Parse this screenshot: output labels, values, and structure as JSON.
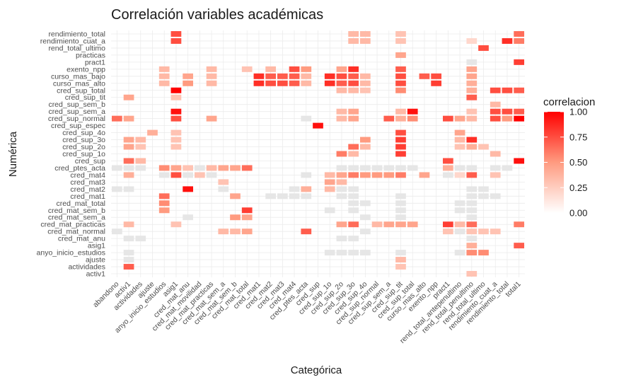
{
  "chart_data": {
    "type": "heatmap",
    "title": "Correlación variables académicas",
    "xlabel": "Categórica",
    "ylabel": "Numérica",
    "x_categories": [
      "abandono",
      "activ1",
      "actividades",
      "ajuste",
      "anyo_inicio_estudios",
      "asig1",
      "cred_mat_anu",
      "cred_mat_movilidad",
      "cred_mat_practicas",
      "cred_mat_sem_a",
      "cred_mat_sem_b",
      "cred_mat_total",
      "cred_mat1",
      "cred_mat2",
      "cred_mat3",
      "cred_mat4",
      "cred_ptes_acta",
      "cred_sup",
      "cred_sup_1o",
      "cred_sup_2o",
      "cred_sup_3o",
      "cred_sup_4o",
      "cred_sup_normal",
      "cred_sup_sem_a",
      "cred_sup_tit",
      "cred_sup_total",
      "curso_mas_alto",
      "exento_npp",
      "pract1",
      "rend_total_antepenultimo",
      "rend_total_penultimo",
      "rend_total_ultimo",
      "rendimiento_cuat_a",
      "rendimiento_total",
      "total1"
    ],
    "y_categories": [
      "rendimiento_total",
      "rendimiento_cuat_a",
      "rend_total_ultimo",
      "practicas",
      "pract1",
      "exento_npp",
      "curso_mas_bajo",
      "curso_mas_alto",
      "cred_sup_total",
      "cred_sup_tit",
      "cred_sup_sem_b",
      "cred_sup_sem_a",
      "cred_sup_normal",
      "cred_sup_espec",
      "cred_sup_4o",
      "cred_sup_3o",
      "cred_sup_2o",
      "cred_sup_1o",
      "cred_sup",
      "cred_ptes_acta",
      "cred_mat4",
      "cred_mat3",
      "cred_mat2",
      "cred_mat1",
      "cred_mat_total",
      "cred_mat_sem_b",
      "cred_mat_sem_a",
      "cred_mat_practicas",
      "cred_mat_normal",
      "cred_mat_anu",
      "asig1",
      "anyo_inicio_estudios",
      "ajuste",
      "actividades",
      "activ1"
    ],
    "cells": [
      [
        5,
        0,
        0.75
      ],
      [
        20,
        0,
        0.35
      ],
      [
        21,
        0,
        0.35
      ],
      [
        24,
        0,
        0.3
      ],
      [
        34,
        0,
        0.65
      ],
      [
        5,
        1,
        0.75
      ],
      [
        20,
        1,
        0.35
      ],
      [
        21,
        1,
        0.35
      ],
      [
        24,
        1,
        0.3
      ],
      [
        30,
        1,
        0.2
      ],
      [
        33,
        1,
        0.85
      ],
      [
        34,
        1,
        0.6
      ],
      [
        31,
        2,
        0.75
      ],
      [
        24,
        3,
        0.45
      ],
      [
        30,
        4,
        0.1
      ],
      [
        34,
        4,
        0.8
      ],
      [
        4,
        5,
        0.35
      ],
      [
        8,
        5,
        0.35
      ],
      [
        11,
        5,
        0.3
      ],
      [
        13,
        5,
        0.35
      ],
      [
        15,
        5,
        0.75
      ],
      [
        16,
        5,
        0.5
      ],
      [
        19,
        5,
        0.45
      ],
      [
        20,
        5,
        0.85
      ],
      [
        24,
        5,
        0.7
      ],
      [
        30,
        5,
        0.45
      ],
      [
        4,
        6,
        0.35
      ],
      [
        6,
        6,
        0.45
      ],
      [
        8,
        6,
        0.35
      ],
      [
        12,
        6,
        0.85
      ],
      [
        13,
        6,
        0.7
      ],
      [
        14,
        6,
        0.7
      ],
      [
        15,
        6,
        0.7
      ],
      [
        16,
        6,
        0.35
      ],
      [
        18,
        6,
        0.85
      ],
      [
        19,
        6,
        0.75
      ],
      [
        20,
        6,
        0.7
      ],
      [
        21,
        6,
        0.35
      ],
      [
        24,
        6,
        0.75
      ],
      [
        26,
        6,
        0.7
      ],
      [
        27,
        6,
        0.75
      ],
      [
        30,
        6,
        0.45
      ],
      [
        4,
        7,
        0.35
      ],
      [
        6,
        7,
        0.5
      ],
      [
        8,
        7,
        0.35
      ],
      [
        12,
        7,
        0.85
      ],
      [
        13,
        7,
        0.75
      ],
      [
        14,
        7,
        0.75
      ],
      [
        15,
        7,
        0.7
      ],
      [
        16,
        7,
        0.35
      ],
      [
        18,
        7,
        0.85
      ],
      [
        19,
        7,
        0.7
      ],
      [
        20,
        7,
        0.75
      ],
      [
        21,
        7,
        0.35
      ],
      [
        24,
        7,
        0.75
      ],
      [
        27,
        7,
        0.8
      ],
      [
        30,
        7,
        0.4
      ],
      [
        5,
        8,
        1.0
      ],
      [
        19,
        8,
        0.35
      ],
      [
        20,
        8,
        0.35
      ],
      [
        21,
        8,
        0.3
      ],
      [
        24,
        8,
        0.55
      ],
      [
        30,
        8,
        0.4
      ],
      [
        32,
        8,
        0.75
      ],
      [
        33,
        8,
        0.75
      ],
      [
        34,
        8,
        0.7
      ],
      [
        1,
        9,
        0.45
      ],
      [
        5,
        9,
        0.3
      ],
      [
        30,
        9,
        0.7
      ],
      [
        32,
        10,
        0.35
      ],
      [
        5,
        11,
        0.95
      ],
      [
        19,
        11,
        0.35
      ],
      [
        20,
        11,
        0.45
      ],
      [
        24,
        11,
        0.35
      ],
      [
        25,
        11,
        0.95
      ],
      [
        30,
        11,
        0.3
      ],
      [
        32,
        11,
        0.75
      ],
      [
        33,
        11,
        0.75
      ],
      [
        34,
        11,
        0.7
      ],
      [
        0,
        12,
        0.65
      ],
      [
        1,
        12,
        0.45
      ],
      [
        5,
        12,
        0.75
      ],
      [
        8,
        12,
        0.45
      ],
      [
        16,
        12,
        0.1
      ],
      [
        19,
        12,
        0.35
      ],
      [
        20,
        12,
        0.45
      ],
      [
        23,
        12,
        0.7
      ],
      [
        24,
        12,
        0.4
      ],
      [
        25,
        12,
        0.55
      ],
      [
        28,
        12,
        0.75
      ],
      [
        29,
        12,
        0.45
      ],
      [
        30,
        12,
        0.35
      ],
      [
        32,
        12,
        0.75
      ],
      [
        33,
        12,
        0.5
      ],
      [
        34,
        12,
        1.0
      ],
      [
        17,
        13,
        0.95
      ],
      [
        3,
        14,
        0.4
      ],
      [
        5,
        14,
        0.3
      ],
      [
        24,
        14,
        0.75
      ],
      [
        29,
        14,
        0.45
      ],
      [
        1,
        15,
        0.45
      ],
      [
        2,
        15,
        0.35
      ],
      [
        5,
        15,
        0.3
      ],
      [
        21,
        15,
        0.5
      ],
      [
        24,
        15,
        0.8
      ],
      [
        29,
        15,
        0.35
      ],
      [
        30,
        15,
        0.85
      ],
      [
        1,
        16,
        0.45
      ],
      [
        2,
        16,
        0.3
      ],
      [
        5,
        16,
        0.3
      ],
      [
        20,
        16,
        0.65
      ],
      [
        21,
        16,
        0.35
      ],
      [
        24,
        16,
        0.8
      ],
      [
        29,
        16,
        0.3
      ],
      [
        30,
        16,
        0.4
      ],
      [
        31,
        16,
        0.3
      ],
      [
        19,
        17,
        0.6
      ],
      [
        20,
        17,
        0.35
      ],
      [
        24,
        17,
        0.8
      ],
      [
        32,
        17,
        0.35
      ],
      [
        1,
        18,
        0.65
      ],
      [
        2,
        18,
        0.35
      ],
      [
        28,
        18,
        0.75
      ],
      [
        34,
        18,
        0.95
      ],
      [
        0,
        19,
        0.1
      ],
      [
        1,
        19,
        0.1
      ],
      [
        2,
        19,
        0.1
      ],
      [
        4,
        19,
        0.55
      ],
      [
        5,
        19,
        0.45
      ],
      [
        6,
        19,
        0.3
      ],
      [
        7,
        19,
        0.1
      ],
      [
        8,
        19,
        0.35
      ],
      [
        9,
        19,
        0.45
      ],
      [
        10,
        19,
        0.45
      ],
      [
        11,
        19,
        0.65
      ],
      [
        19,
        19,
        0.1
      ],
      [
        20,
        19,
        0.1
      ],
      [
        21,
        19,
        0.1
      ],
      [
        22,
        19,
        0.1
      ],
      [
        23,
        19,
        0.1
      ],
      [
        24,
        19,
        0.1
      ],
      [
        25,
        19,
        0.1
      ],
      [
        28,
        19,
        0.4
      ],
      [
        29,
        19,
        0.1
      ],
      [
        30,
        19,
        0.1
      ],
      [
        32,
        19,
        0.1
      ],
      [
        33,
        19,
        0.1
      ],
      [
        1,
        20,
        0.4
      ],
      [
        4,
        20,
        0.1
      ],
      [
        5,
        20,
        0.75
      ],
      [
        6,
        20,
        0.1
      ],
      [
        7,
        20,
        0.3
      ],
      [
        8,
        20,
        0.1
      ],
      [
        16,
        20,
        0.1
      ],
      [
        18,
        20,
        0.35
      ],
      [
        19,
        20,
        0.45
      ],
      [
        20,
        20,
        0.6
      ],
      [
        21,
        20,
        0.5
      ],
      [
        22,
        20,
        0.5
      ],
      [
        23,
        20,
        0.5
      ],
      [
        24,
        20,
        0.6
      ],
      [
        26,
        20,
        0.45
      ],
      [
        28,
        20,
        0.1
      ],
      [
        29,
        20,
        0.2
      ],
      [
        30,
        20,
        0.7
      ],
      [
        32,
        20,
        0.3
      ],
      [
        9,
        21,
        0.3
      ],
      [
        18,
        21,
        0.45
      ],
      [
        19,
        21,
        0.35
      ],
      [
        0,
        22,
        0.1
      ],
      [
        1,
        22,
        0.1
      ],
      [
        6,
        22,
        0.95
      ],
      [
        9,
        22,
        0.1
      ],
      [
        15,
        22,
        0.1
      ],
      [
        16,
        22,
        0.4
      ],
      [
        18,
        22,
        0.35
      ],
      [
        19,
        22,
        0.1
      ],
      [
        20,
        22,
        0.1
      ],
      [
        30,
        22,
        0.1
      ],
      [
        31,
        22,
        0.1
      ],
      [
        4,
        23,
        0.65
      ],
      [
        10,
        23,
        0.45
      ],
      [
        13,
        23,
        0.1
      ],
      [
        14,
        23,
        0.1
      ],
      [
        15,
        23,
        0.1
      ],
      [
        16,
        23,
        0.1
      ],
      [
        19,
        23,
        0.1
      ],
      [
        20,
        23,
        0.1
      ],
      [
        24,
        23,
        0.1
      ],
      [
        30,
        23,
        0.1
      ],
      [
        31,
        23,
        0.1
      ],
      [
        32,
        23,
        0.1
      ],
      [
        4,
        24,
        0.55
      ],
      [
        20,
        24,
        0.1
      ],
      [
        21,
        24,
        0.1
      ],
      [
        24,
        24,
        0.1
      ],
      [
        29,
        24,
        0.1
      ],
      [
        30,
        24,
        0.1
      ],
      [
        4,
        25,
        0.5
      ],
      [
        11,
        25,
        0.8
      ],
      [
        18,
        25,
        0.1
      ],
      [
        20,
        25,
        0.1
      ],
      [
        24,
        25,
        0.1
      ],
      [
        29,
        25,
        0.1
      ],
      [
        30,
        25,
        0.1
      ],
      [
        6,
        26,
        0.1
      ],
      [
        10,
        26,
        0.5
      ],
      [
        11,
        26,
        0.45
      ],
      [
        21,
        26,
        0.1
      ],
      [
        24,
        26,
        0.1
      ],
      [
        30,
        26,
        0.1
      ],
      [
        1,
        27,
        0.35
      ],
      [
        5,
        27,
        0.3
      ],
      [
        19,
        27,
        0.45
      ],
      [
        20,
        27,
        0.65
      ],
      [
        22,
        27,
        0.35
      ],
      [
        23,
        27,
        0.45
      ],
      [
        24,
        27,
        0.45
      ],
      [
        25,
        27,
        0.45
      ],
      [
        28,
        27,
        0.8
      ],
      [
        29,
        27,
        0.35
      ],
      [
        30,
        27,
        0.65
      ],
      [
        34,
        27,
        0.6
      ],
      [
        0,
        28,
        0.1
      ],
      [
        9,
        28,
        0.35
      ],
      [
        10,
        28,
        0.35
      ],
      [
        11,
        28,
        0.45
      ],
      [
        16,
        28,
        0.7
      ],
      [
        21,
        28,
        0.1
      ],
      [
        28,
        28,
        0.3
      ],
      [
        29,
        28,
        0.1
      ],
      [
        30,
        28,
        0.3
      ],
      [
        31,
        28,
        0.3
      ],
      [
        32,
        28,
        0.3
      ],
      [
        1,
        29,
        0.1
      ],
      [
        2,
        29,
        0.1
      ],
      [
        19,
        29,
        0.1
      ],
      [
        20,
        29,
        0.1
      ],
      [
        30,
        29,
        0.1
      ],
      [
        30,
        30,
        0.4
      ],
      [
        34,
        30,
        0.7
      ],
      [
        1,
        31,
        0.1
      ],
      [
        18,
        31,
        0.1
      ],
      [
        19,
        31,
        0.1
      ],
      [
        20,
        31,
        0.1
      ],
      [
        21,
        31,
        0.1
      ],
      [
        24,
        31,
        0.1
      ],
      [
        29,
        31,
        0.1
      ],
      [
        30,
        31,
        0.55
      ],
      [
        31,
        31,
        0.55
      ],
      [
        1,
        32,
        0.1
      ],
      [
        24,
        32,
        0.35
      ],
      [
        1,
        33,
        0.7
      ],
      [
        24,
        33,
        0.3
      ],
      [
        30,
        34,
        0.3
      ]
    ],
    "legend": {
      "title": "correlacion",
      "ticks": [
        "1.00",
        "0.75",
        "0.50",
        "0.25",
        "0.00"
      ],
      "low_color": "#ffffff",
      "high_color": "#ff0000",
      "position": "right"
    },
    "missing_color": "#e6e6e6",
    "grid": true
  }
}
